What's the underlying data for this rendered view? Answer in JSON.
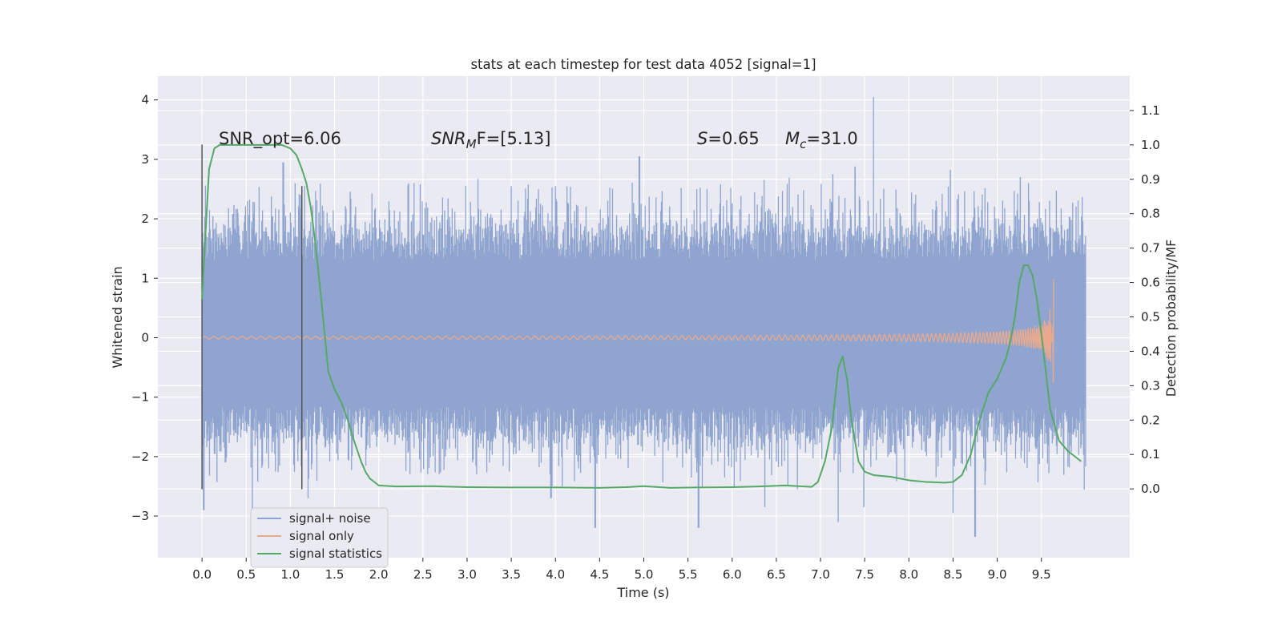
{
  "chart_data": {
    "type": "line",
    "title": "stats at each timestep for test data 4052 [signal=1]",
    "xlabel": "Time (s)",
    "ylabel": "Whitened strain",
    "ylabel_right": "Detection probability/MF",
    "xlim": [
      -0.5,
      10.5
    ],
    "ylim_left": [
      -3.7,
      4.4
    ],
    "ylim_right": [
      -0.2,
      1.2
    ],
    "x_ticks": [
      "0.0",
      "0.5",
      "1.0",
      "1.5",
      "2.0",
      "2.5",
      "3.0",
      "3.5",
      "4.0",
      "4.5",
      "5.0",
      "5.5",
      "6.0",
      "6.5",
      "7.0",
      "7.5",
      "8.0",
      "8.5",
      "9.0",
      "9.5"
    ],
    "x_tick_values": [
      0,
      0.5,
      1,
      1.5,
      2,
      2.5,
      3,
      3.5,
      4,
      4.5,
      5,
      5.5,
      6,
      6.5,
      7,
      7.5,
      8,
      8.5,
      9,
      9.5
    ],
    "y_ticks_left": [
      "−3",
      "−2",
      "−1",
      "0",
      "1",
      "2",
      "3",
      "4"
    ],
    "y_tick_values_left": [
      -3,
      -2,
      -1,
      0,
      1,
      2,
      3,
      4
    ],
    "y_ticks_right": [
      "0.0",
      "0.1",
      "0.2",
      "0.3",
      "0.4",
      "0.5",
      "0.6",
      "0.7",
      "0.8",
      "0.9",
      "1.0",
      "1.1"
    ],
    "y_tick_values_right": [
      0,
      0.1,
      0.2,
      0.3,
      0.4,
      0.5,
      0.6,
      0.7,
      0.8,
      0.9,
      1.0,
      1.1
    ],
    "grid": true,
    "legend_position": "lower-left",
    "annotations": {
      "snr_opt": "SNR_opt=6.06",
      "snr_mf_main": "SNR",
      "snr_mf_sub": "M",
      "snr_mf_rest": "F=[5.13]",
      "s_var": "S",
      "s_val": "=0.65",
      "mc_var": "M",
      "mc_sub": "c",
      "mc_val": "=31.0"
    },
    "vertical_markers": [
      {
        "x": 0.0,
        "y_range": [
          -2.55,
          3.25
        ]
      },
      {
        "x": 1.13,
        "y_range": [
          -2.55,
          2.55
        ]
      }
    ],
    "series": [
      {
        "name": "signal+ noise",
        "color": "#8fa5cf",
        "axis": "left",
        "x_range": [
          0,
          10
        ],
        "band": [
          -0.8,
          0.95
        ],
        "peaks": [
          [
            7.6,
            4.05
          ],
          [
            4.95,
            3.05
          ],
          [
            0.92,
            2.95
          ],
          [
            7.39,
            2.88
          ],
          [
            8.47,
            2.82
          ],
          [
            7.14,
            2.75
          ],
          [
            9.26,
            2.7
          ],
          [
            2.4,
            2.6
          ],
          [
            3.5,
            2.55
          ],
          [
            5.6,
            2.5
          ]
        ],
        "troughs": [
          [
            4.45,
            -3.2
          ],
          [
            5.62,
            -3.2
          ],
          [
            8.75,
            -3.35
          ],
          [
            7.2,
            -3.1
          ],
          [
            0.02,
            -2.9
          ],
          [
            0.57,
            -2.95
          ],
          [
            3.95,
            -2.7
          ],
          [
            1.2,
            -2.7
          ],
          [
            6.37,
            -2.85
          ],
          [
            7.49,
            -2.85
          ],
          [
            8.5,
            -2.95
          ]
        ]
      },
      {
        "name": "signal only",
        "color": "#e8a98f",
        "axis": "left",
        "x_range": [
          0,
          9.65
        ],
        "chirp_peak": 1.15
      },
      {
        "name": "signal statistics",
        "color": "#55a868",
        "axis": "right",
        "x": [
          0.0,
          0.03,
          0.08,
          0.14,
          0.2,
          0.3,
          0.5,
          0.7,
          0.9,
          1.0,
          1.07,
          1.13,
          1.18,
          1.23,
          1.28,
          1.33,
          1.38,
          1.43,
          1.5,
          1.58,
          1.65,
          1.72,
          1.8,
          1.85,
          1.9,
          2.0,
          2.2,
          2.6,
          3.0,
          3.5,
          4.0,
          4.5,
          4.8,
          5.0,
          5.3,
          5.6,
          6.0,
          6.3,
          6.6,
          6.9,
          6.97,
          7.05,
          7.13,
          7.2,
          7.25,
          7.3,
          7.35,
          7.43,
          7.5,
          7.6,
          7.8,
          8.0,
          8.2,
          8.4,
          8.5,
          8.6,
          8.7,
          8.8,
          8.9,
          9.0,
          9.05,
          9.1,
          9.15,
          9.2,
          9.25,
          9.3,
          9.35,
          9.4,
          9.45,
          9.5,
          9.55,
          9.6,
          9.7,
          9.8,
          9.9,
          9.95
        ],
        "y": [
          0.55,
          0.7,
          0.93,
          0.99,
          1.0,
          1.0,
          1.0,
          1.0,
          1.0,
          0.99,
          0.97,
          0.93,
          0.89,
          0.82,
          0.72,
          0.6,
          0.47,
          0.34,
          0.29,
          0.25,
          0.2,
          0.14,
          0.08,
          0.05,
          0.03,
          0.01,
          0.007,
          0.008,
          0.005,
          0.004,
          0.004,
          0.003,
          0.005,
          0.008,
          0.003,
          0.004,
          0.005,
          0.007,
          0.01,
          0.006,
          0.02,
          0.08,
          0.18,
          0.35,
          0.385,
          0.32,
          0.2,
          0.08,
          0.05,
          0.04,
          0.035,
          0.025,
          0.02,
          0.018,
          0.02,
          0.04,
          0.1,
          0.2,
          0.28,
          0.32,
          0.35,
          0.38,
          0.43,
          0.5,
          0.6,
          0.65,
          0.65,
          0.62,
          0.55,
          0.45,
          0.34,
          0.23,
          0.14,
          0.11,
          0.09,
          0.08
        ]
      }
    ]
  }
}
